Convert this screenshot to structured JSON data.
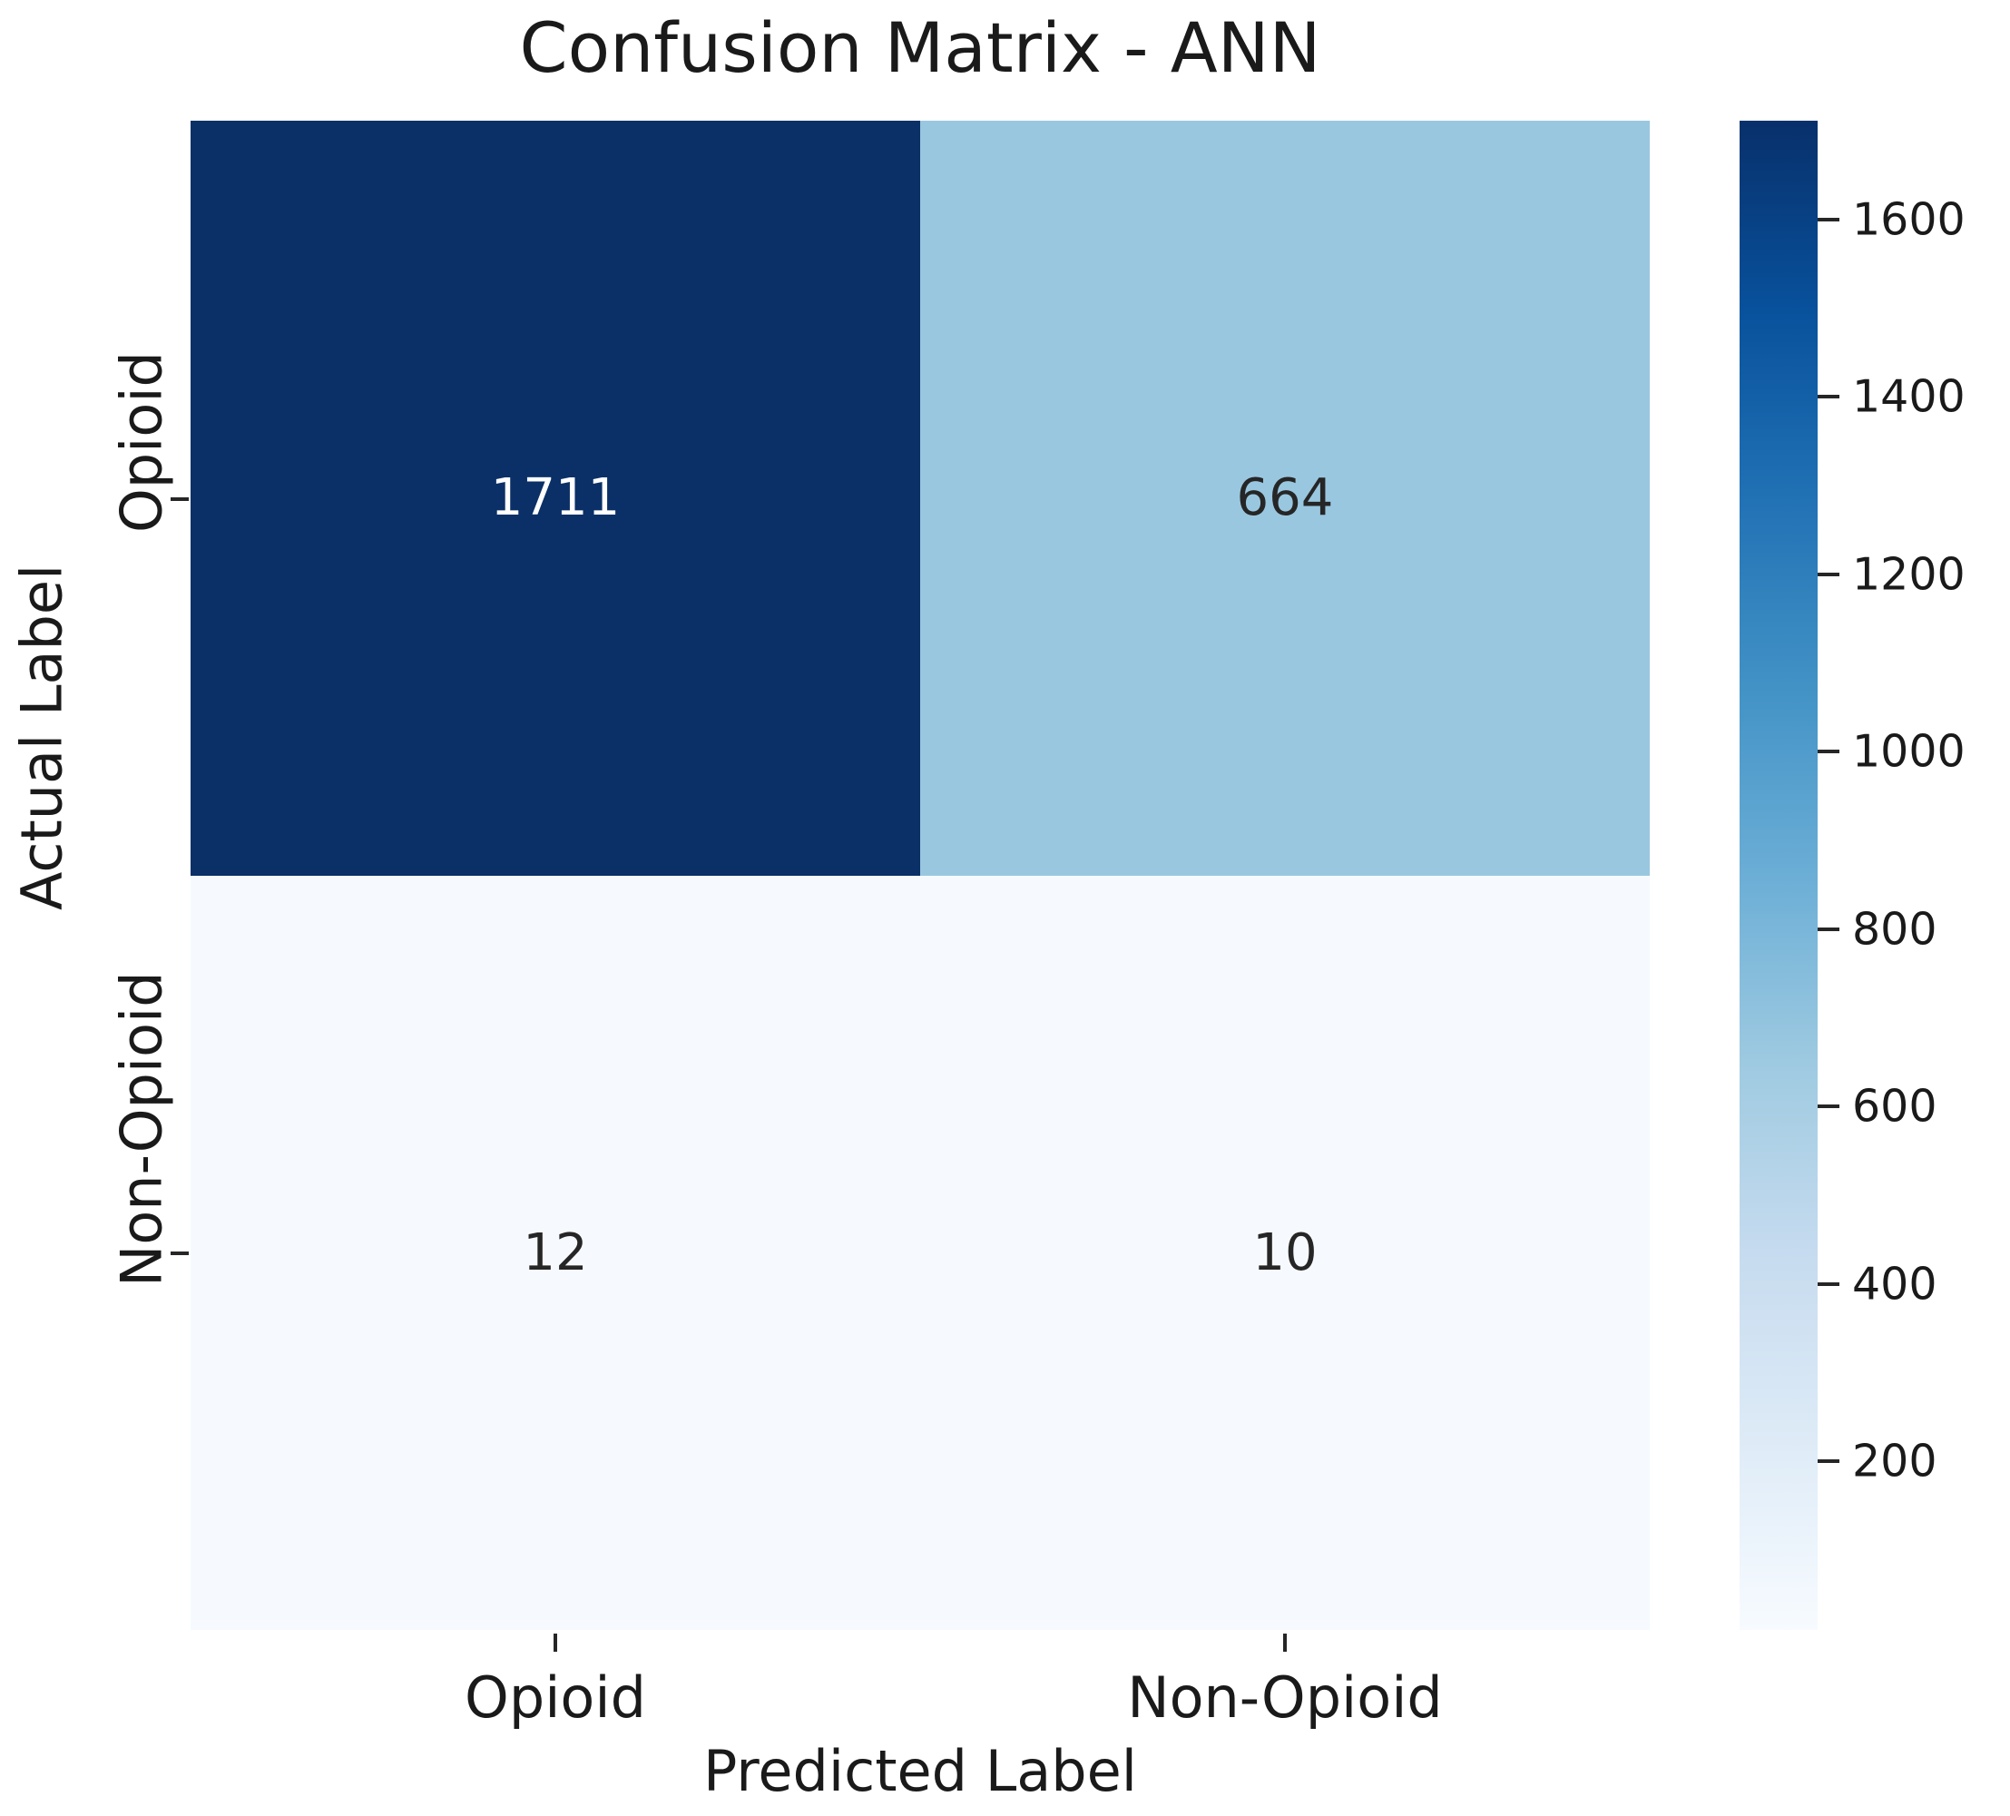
{
  "chart_data": {
    "type": "heatmap",
    "title": "Confusion Matrix - ANN",
    "xlabel": "Predicted Label",
    "ylabel": "Actual Label",
    "x_categories": [
      "Opioid",
      "Non-Opioid"
    ],
    "y_categories": [
      "Opioid",
      "Non-Opioid"
    ],
    "matrix": [
      [
        1711,
        664
      ],
      [
        12,
        10
      ]
    ],
    "vmin": 10,
    "vmax": 1711,
    "colormap": "Blues",
    "cell_colors": [
      [
        "#0a3067",
        "#99c7e0"
      ],
      [
        "#f6fafe",
        "#f6fafe"
      ]
    ],
    "cell_text_colors": [
      [
        "#ffffff",
        "#262626"
      ],
      [
        "#262626",
        "#262626"
      ]
    ],
    "colorbar_ticks": [
      200,
      400,
      600,
      800,
      1000,
      1200,
      1400,
      1600
    ],
    "legend_position": "right-colorbar",
    "grid": false
  },
  "colors": {
    "background": "#ffffff",
    "text": "#1a1a1a",
    "tick": "#262626",
    "colormap_low": "#f7fbff",
    "colormap_high": "#08306b"
  }
}
